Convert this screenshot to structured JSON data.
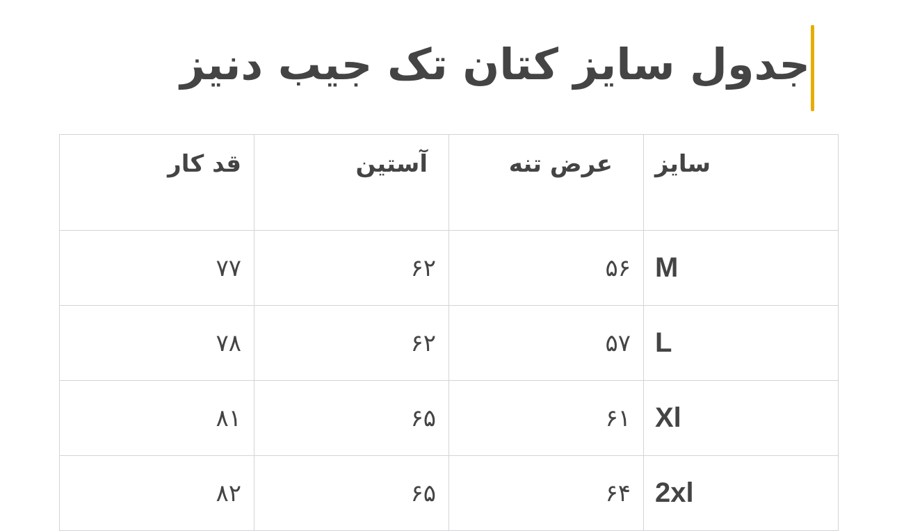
{
  "title": "جدول سایز کتان تک جیب دنیز",
  "accent_color": "#e6ad00",
  "table": {
    "headers": [
      "سایز",
      "عرض تنه",
      "آستین",
      "قد کار"
    ],
    "rows": [
      [
        "M",
        "۵۶",
        "۶۲",
        "۷۷"
      ],
      [
        "L",
        "۵۷",
        "۶۲",
        "۷۸"
      ],
      [
        "Xl",
        "۶۱",
        "۶۵",
        "۸۱"
      ],
      [
        "2xl",
        "۶۴",
        "۶۵",
        "۸۲"
      ]
    ]
  }
}
